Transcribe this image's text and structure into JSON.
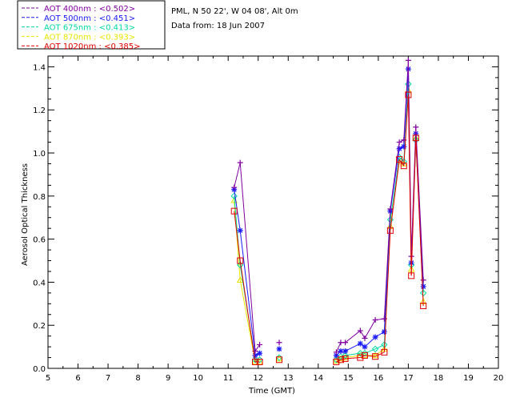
{
  "header": {
    "location": "PML, N 50 22', W 04 08', Alt 0m",
    "date_line": "Data from: 18 Jun 2007"
  },
  "legend": {
    "entries": [
      {
        "label": "AOT  400nm : <0.502>",
        "color": "#8000a0"
      },
      {
        "label": "AOT  500nm : <0.451>",
        "color": "#1a1aff"
      },
      {
        "label": "AOT  675nm : <0.413>",
        "color": "#00d8a0"
      },
      {
        "label": "AOT  870nm : <0.393>",
        "color": "#e6e600"
      },
      {
        "label": "AOT 1020nm : <0.385>",
        "color": "#e00000"
      }
    ]
  },
  "chart_data": {
    "type": "line",
    "xlabel": "Time (GMT)",
    "ylabel": "Aerosol Optical Thickness",
    "xlim": [
      5,
      20
    ],
    "ylim": [
      0,
      1.45
    ],
    "x_ticks": [
      5,
      6,
      7,
      8,
      9,
      10,
      11,
      12,
      13,
      14,
      15,
      16,
      17,
      18,
      19,
      20
    ],
    "x_tick_labels": [
      "5",
      "6",
      "7",
      "8",
      "9",
      "10",
      "11",
      "12",
      "13",
      "14",
      "15",
      "16",
      "17",
      "18",
      "19",
      "20"
    ],
    "y_ticks": [
      0,
      0.2,
      0.4,
      0.6,
      0.8,
      1.0,
      1.2,
      1.4
    ],
    "y_tick_labels": [
      "0.0",
      "0.2",
      "0.4",
      "0.6",
      "0.8",
      "1.0",
      "1.2",
      "1.4"
    ],
    "series": [
      {
        "name": "AOT  400nm",
        "marker": "plus",
        "color": "#8000a0",
        "points": [
          [
            11.2,
            0.84
          ],
          [
            11.4,
            0.955
          ],
          [
            11.9,
            0.08
          ],
          [
            12.05,
            0.11
          ],
          [
            12.7,
            0.12
          ],
          [
            14.6,
            0.075
          ],
          [
            14.75,
            0.12
          ],
          [
            14.9,
            0.12
          ],
          [
            15.4,
            0.175
          ],
          [
            15.55,
            0.14
          ],
          [
            15.9,
            0.225
          ],
          [
            16.2,
            0.23
          ],
          [
            16.4,
            0.74
          ],
          [
            16.7,
            1.05
          ],
          [
            16.85,
            1.06
          ],
          [
            17.0,
            1.43
          ],
          [
            17.1,
            0.52
          ],
          [
            17.25,
            1.12
          ],
          [
            17.5,
            0.41
          ]
        ]
      },
      {
        "name": "AOT  500nm",
        "marker": "asterisk",
        "color": "#1a1aff",
        "points": [
          [
            11.2,
            0.83
          ],
          [
            11.4,
            0.64
          ],
          [
            11.9,
            0.06
          ],
          [
            12.05,
            0.07
          ],
          [
            12.7,
            0.09
          ],
          [
            14.6,
            0.06
          ],
          [
            14.75,
            0.08
          ],
          [
            14.9,
            0.08
          ],
          [
            15.4,
            0.115
          ],
          [
            15.55,
            0.1
          ],
          [
            15.9,
            0.145
          ],
          [
            16.2,
            0.17
          ],
          [
            16.4,
            0.73
          ],
          [
            16.7,
            1.02
          ],
          [
            16.85,
            1.03
          ],
          [
            17.0,
            1.39
          ],
          [
            17.1,
            0.49
          ],
          [
            17.25,
            1.09
          ],
          [
            17.5,
            0.38
          ]
        ]
      },
      {
        "name": "AOT  675nm",
        "marker": "diamond",
        "color": "#00d8a0",
        "points": [
          [
            11.2,
            0.8
          ],
          [
            11.4,
            0.48
          ],
          [
            11.9,
            0.04
          ],
          [
            12.05,
            0.04
          ],
          [
            12.7,
            0.05
          ],
          [
            14.6,
            0.04
          ],
          [
            14.75,
            0.055
          ],
          [
            14.9,
            0.06
          ],
          [
            15.4,
            0.07
          ],
          [
            15.55,
            0.07
          ],
          [
            15.9,
            0.09
          ],
          [
            16.2,
            0.11
          ],
          [
            16.4,
            0.69
          ],
          [
            16.7,
            0.98
          ],
          [
            16.85,
            0.96
          ],
          [
            17.0,
            1.32
          ],
          [
            17.1,
            0.48
          ],
          [
            17.25,
            1.06
          ],
          [
            17.5,
            0.35
          ]
        ]
      },
      {
        "name": "AOT  870nm",
        "marker": "triangle",
        "color": "#e6e600",
        "points": [
          [
            11.2,
            0.78
          ],
          [
            11.4,
            0.41
          ],
          [
            11.9,
            0.03
          ],
          [
            12.05,
            0.03
          ],
          [
            12.7,
            0.045
          ],
          [
            14.6,
            0.035
          ],
          [
            14.75,
            0.045
          ],
          [
            14.9,
            0.05
          ],
          [
            15.4,
            0.06
          ],
          [
            15.55,
            0.06
          ],
          [
            15.9,
            0.06
          ],
          [
            16.2,
            0.09
          ],
          [
            16.4,
            0.66
          ],
          [
            16.7,
            0.96
          ],
          [
            16.85,
            0.95
          ],
          [
            17.0,
            1.29
          ],
          [
            17.1,
            0.46
          ],
          [
            17.25,
            1.07
          ],
          [
            17.5,
            0.31
          ]
        ]
      },
      {
        "name": "AOT 1020nm",
        "marker": "square",
        "color": "#e00000",
        "points": [
          [
            11.2,
            0.73
          ],
          [
            11.4,
            0.5
          ],
          [
            11.9,
            0.03
          ],
          [
            12.05,
            0.03
          ],
          [
            12.7,
            0.04
          ],
          [
            14.6,
            0.03
          ],
          [
            14.75,
            0.04
          ],
          [
            14.9,
            0.045
          ],
          [
            15.4,
            0.05
          ],
          [
            15.55,
            0.06
          ],
          [
            15.9,
            0.055
          ],
          [
            16.2,
            0.075
          ],
          [
            16.4,
            0.64
          ],
          [
            16.7,
            0.97
          ],
          [
            16.85,
            0.94
          ],
          [
            17.0,
            1.27
          ],
          [
            17.1,
            0.43
          ],
          [
            17.25,
            1.07
          ],
          [
            17.5,
            0.29
          ]
        ]
      }
    ]
  }
}
